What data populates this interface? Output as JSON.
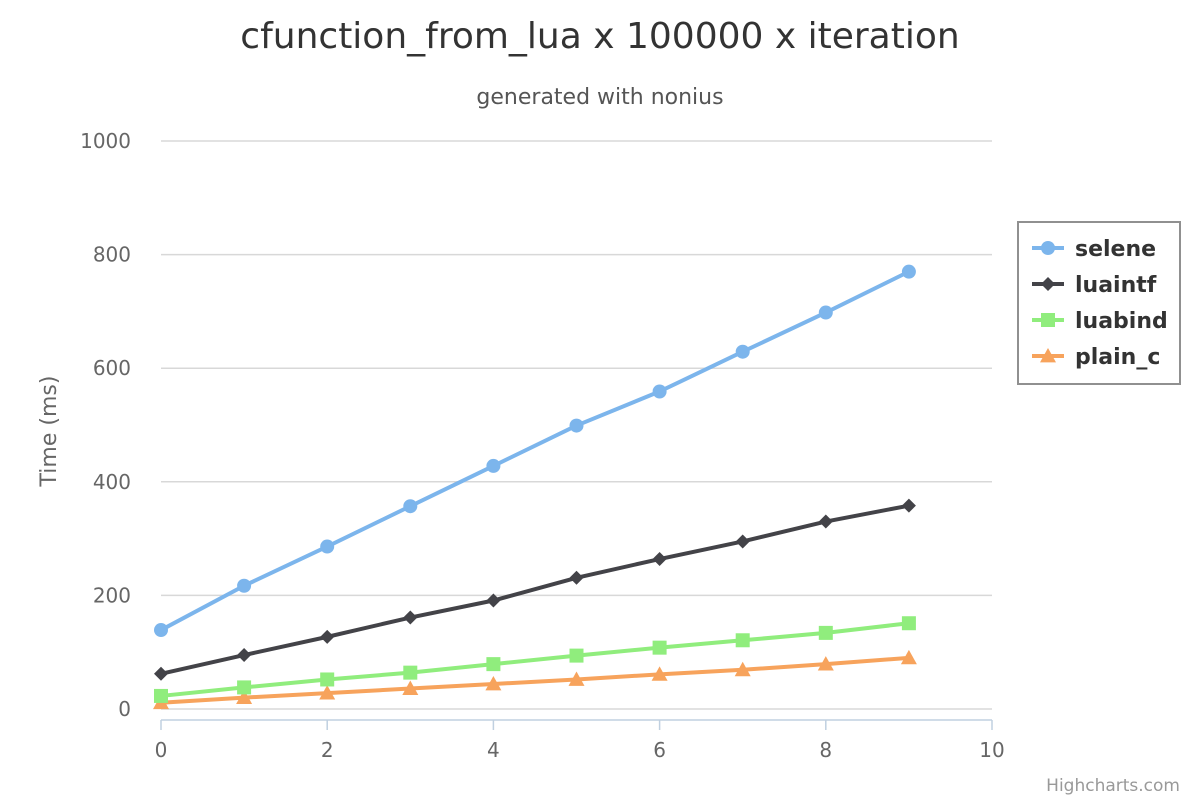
{
  "chart_data": {
    "type": "line",
    "title": "cfunction_from_lua x 100000 x iteration",
    "subtitle": "generated with nonius",
    "xlabel": "",
    "ylabel": "Time (ms)",
    "x": [
      0,
      1,
      2,
      3,
      4,
      5,
      6,
      7,
      8,
      9
    ],
    "xlim": [
      0,
      10
    ],
    "ylim": [
      0,
      1000
    ],
    "x_ticks": [
      0,
      2,
      4,
      6,
      8,
      10
    ],
    "y_ticks": [
      0,
      200,
      400,
      600,
      800,
      1000
    ],
    "grid": "horizontal",
    "legend_position": "right",
    "series": [
      {
        "name": "selene",
        "marker": "circle",
        "color": "#7cb5ec",
        "values": [
          139,
          217,
          286,
          357,
          428,
          499,
          559,
          629,
          698,
          770
        ]
      },
      {
        "name": "luaintf",
        "marker": "diamond",
        "color": "#434348",
        "values": [
          62,
          95,
          127,
          161,
          191,
          231,
          264,
          295,
          330,
          358
        ]
      },
      {
        "name": "luabind",
        "marker": "square",
        "color": "#90ed7d",
        "values": [
          23,
          38,
          52,
          64,
          79,
          94,
          108,
          121,
          134,
          151
        ]
      },
      {
        "name": "plain_c",
        "marker": "triangle",
        "color": "#f7a35c",
        "values": [
          11,
          20,
          28,
          36,
          44,
          52,
          61,
          69,
          79,
          90
        ]
      }
    ]
  },
  "credits": "Highcharts.com"
}
